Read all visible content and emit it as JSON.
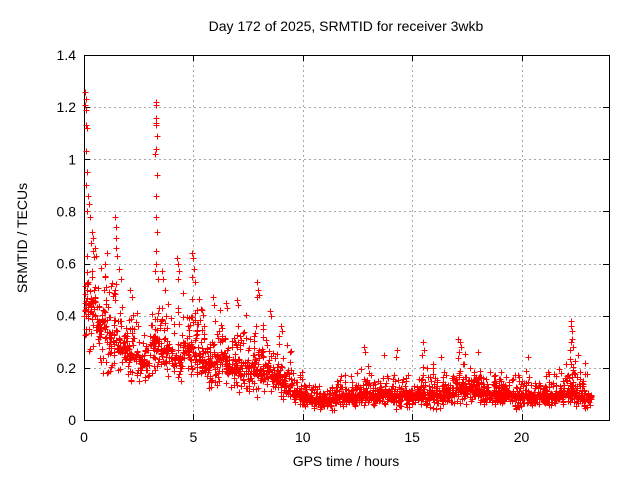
{
  "chart_data": {
    "type": "scatter",
    "title": "Day 172 of 2025, SRMTID for receiver 3wkb",
    "xlabel": "GPS time / hours",
    "ylabel": "SRMTID / TECUs",
    "xlim": [
      0,
      24
    ],
    "ylim": [
      0,
      1.4
    ],
    "xticks": [
      {
        "v": 0,
        "label": "0"
      },
      {
        "v": 5,
        "label": "5"
      },
      {
        "v": 10,
        "label": "10"
      },
      {
        "v": 15,
        "label": "15"
      },
      {
        "v": 20,
        "label": "20"
      }
    ],
    "yticks": [
      {
        "v": 0,
        "label": "0"
      },
      {
        "v": 0.2,
        "label": "0.2"
      },
      {
        "v": 0.4,
        "label": "0.4"
      },
      {
        "v": 0.6,
        "label": "0.6"
      },
      {
        "v": 0.8,
        "label": "0.8"
      },
      {
        "v": 1.0,
        "label": "1"
      },
      {
        "v": 1.2,
        "label": "1.2"
      },
      {
        "v": 1.4,
        "label": "1.4"
      }
    ],
    "grid": true,
    "legend": "none",
    "marker": "plus",
    "marker_size": 7,
    "colors": {
      "marker": "#ff0000",
      "grid": "#a8a8a8",
      "axis": "#000000",
      "background": "#ffffff"
    },
    "x_data_start": 0.0,
    "x_data_end": 23.2,
    "seed": 172172,
    "skew_exponent": 1.5,
    "scatter_bins": [
      [
        0.0,
        0.5,
        60,
        0.18,
        0.75,
        0.45
      ],
      [
        0.5,
        1.0,
        55,
        0.15,
        0.62,
        0.38
      ],
      [
        1.0,
        1.5,
        55,
        0.13,
        0.58,
        0.3
      ],
      [
        1.5,
        2.0,
        55,
        0.14,
        0.55,
        0.28
      ],
      [
        2.0,
        2.5,
        50,
        0.13,
        0.48,
        0.25
      ],
      [
        2.5,
        3.0,
        42,
        0.13,
        0.38,
        0.22
      ],
      [
        3.0,
        3.5,
        55,
        0.17,
        0.52,
        0.3
      ],
      [
        3.5,
        4.0,
        55,
        0.14,
        0.5,
        0.27
      ],
      [
        4.0,
        4.5,
        42,
        0.11,
        0.45,
        0.22
      ],
      [
        4.5,
        5.0,
        55,
        0.14,
        0.52,
        0.28
      ],
      [
        5.0,
        5.5,
        55,
        0.12,
        0.5,
        0.25
      ],
      [
        5.5,
        6.0,
        55,
        0.1,
        0.42,
        0.22
      ],
      [
        6.0,
        6.5,
        55,
        0.1,
        0.45,
        0.24
      ],
      [
        6.5,
        7.0,
        55,
        0.1,
        0.42,
        0.2
      ],
      [
        7.0,
        7.5,
        55,
        0.09,
        0.45,
        0.21
      ],
      [
        7.5,
        8.0,
        55,
        0.08,
        0.46,
        0.19
      ],
      [
        8.0,
        8.5,
        55,
        0.08,
        0.44,
        0.19
      ],
      [
        8.5,
        9.0,
        55,
        0.08,
        0.4,
        0.17
      ],
      [
        9.0,
        9.5,
        55,
        0.06,
        0.32,
        0.14
      ],
      [
        9.5,
        10.0,
        60,
        0.05,
        0.2,
        0.1
      ],
      [
        10.0,
        10.5,
        60,
        0.04,
        0.17,
        0.09
      ],
      [
        10.5,
        11.0,
        60,
        0.03,
        0.16,
        0.08
      ],
      [
        11.0,
        11.5,
        60,
        0.03,
        0.16,
        0.08
      ],
      [
        11.5,
        12.0,
        60,
        0.04,
        0.18,
        0.09
      ],
      [
        12.0,
        12.5,
        60,
        0.04,
        0.2,
        0.09
      ],
      [
        12.5,
        13.0,
        60,
        0.05,
        0.24,
        0.1
      ],
      [
        13.0,
        13.5,
        60,
        0.04,
        0.2,
        0.09
      ],
      [
        13.5,
        14.0,
        60,
        0.05,
        0.22,
        0.1
      ],
      [
        14.0,
        14.5,
        60,
        0.03,
        0.24,
        0.09
      ],
      [
        14.5,
        15.0,
        60,
        0.04,
        0.18,
        0.09
      ],
      [
        15.0,
        15.5,
        60,
        0.05,
        0.22,
        0.1
      ],
      [
        15.5,
        16.0,
        60,
        0.04,
        0.26,
        0.1
      ],
      [
        16.0,
        16.5,
        60,
        0.04,
        0.2,
        0.09
      ],
      [
        16.5,
        17.0,
        60,
        0.05,
        0.22,
        0.1
      ],
      [
        17.0,
        17.5,
        60,
        0.05,
        0.28,
        0.12
      ],
      [
        17.5,
        18.0,
        60,
        0.06,
        0.25,
        0.12
      ],
      [
        18.0,
        18.5,
        60,
        0.05,
        0.23,
        0.11
      ],
      [
        18.5,
        19.0,
        60,
        0.05,
        0.2,
        0.1
      ],
      [
        19.0,
        19.5,
        60,
        0.05,
        0.21,
        0.1
      ],
      [
        19.5,
        20.0,
        60,
        0.04,
        0.2,
        0.09
      ],
      [
        20.0,
        20.5,
        60,
        0.04,
        0.2,
        0.09
      ],
      [
        20.5,
        21.0,
        60,
        0.05,
        0.18,
        0.09
      ],
      [
        21.0,
        21.5,
        60,
        0.04,
        0.2,
        0.09
      ],
      [
        21.5,
        22.0,
        60,
        0.05,
        0.22,
        0.1
      ],
      [
        22.0,
        22.5,
        60,
        0.05,
        0.28,
        0.11
      ],
      [
        22.5,
        23.0,
        55,
        0.04,
        0.22,
        0.09
      ],
      [
        23.0,
        23.2,
        20,
        0.05,
        0.14,
        0.08
      ]
    ],
    "outlier_points": [
      [
        0.05,
        1.26
      ],
      [
        0.08,
        1.23
      ],
      [
        0.06,
        1.21
      ],
      [
        0.1,
        1.19
      ],
      [
        0.09,
        1.13
      ],
      [
        0.12,
        1.12
      ],
      [
        0.07,
        1.03
      ],
      [
        0.15,
        0.95
      ],
      [
        0.11,
        0.9
      ],
      [
        0.18,
        0.86
      ],
      [
        0.22,
        0.83
      ],
      [
        0.13,
        0.8
      ],
      [
        0.28,
        0.78
      ],
      [
        0.35,
        0.72
      ],
      [
        0.3,
        0.68
      ],
      [
        0.42,
        0.7
      ],
      [
        0.5,
        0.66
      ],
      [
        0.55,
        0.63
      ],
      [
        0.95,
        0.6
      ],
      [
        1.05,
        0.64
      ],
      [
        1.42,
        0.78
      ],
      [
        1.45,
        0.74
      ],
      [
        1.48,
        0.7
      ],
      [
        1.44,
        0.66
      ],
      [
        1.52,
        0.63
      ],
      [
        1.6,
        0.58
      ],
      [
        1.7,
        0.54
      ],
      [
        2.1,
        0.5
      ],
      [
        2.2,
        0.47
      ],
      [
        3.27,
        1.22
      ],
      [
        3.3,
        1.21
      ],
      [
        3.29,
        1.16
      ],
      [
        3.31,
        1.14
      ],
      [
        3.28,
        1.13
      ],
      [
        3.32,
        1.09
      ],
      [
        3.3,
        1.04
      ],
      [
        3.26,
        1.02
      ],
      [
        3.33,
        0.94
      ],
      [
        3.29,
        0.86
      ],
      [
        3.31,
        0.78
      ],
      [
        3.34,
        0.72
      ],
      [
        3.28,
        0.65
      ],
      [
        3.3,
        0.6
      ],
      [
        3.25,
        0.57
      ],
      [
        3.36,
        0.54
      ],
      [
        3.55,
        0.57
      ],
      [
        3.6,
        0.54
      ],
      [
        3.7,
        0.5
      ],
      [
        4.25,
        0.62
      ],
      [
        4.3,
        0.6
      ],
      [
        4.35,
        0.57
      ],
      [
        4.28,
        0.54
      ],
      [
        4.92,
        0.64
      ],
      [
        4.97,
        0.62
      ],
      [
        5.02,
        0.58
      ],
      [
        4.95,
        0.55
      ],
      [
        5.08,
        0.53
      ],
      [
        5.9,
        0.47
      ],
      [
        5.95,
        0.44
      ],
      [
        6.5,
        0.45
      ],
      [
        6.55,
        0.43
      ],
      [
        7.0,
        0.46
      ],
      [
        7.05,
        0.44
      ],
      [
        7.9,
        0.47
      ],
      [
        7.92,
        0.53
      ],
      [
        7.95,
        0.5
      ],
      [
        7.98,
        0.48
      ],
      [
        8.5,
        0.42
      ],
      [
        8.55,
        0.4
      ],
      [
        9.0,
        0.36
      ],
      [
        9.05,
        0.34
      ],
      [
        12.78,
        0.28
      ],
      [
        12.84,
        0.26
      ],
      [
        13.7,
        0.25
      ],
      [
        14.25,
        0.24
      ],
      [
        14.3,
        0.27
      ],
      [
        15.45,
        0.25
      ],
      [
        15.5,
        0.3
      ],
      [
        15.55,
        0.27
      ],
      [
        16.3,
        0.24
      ],
      [
        17.1,
        0.31
      ],
      [
        17.18,
        0.3
      ],
      [
        17.25,
        0.28
      ],
      [
        17.15,
        0.26
      ],
      [
        18.0,
        0.26
      ],
      [
        20.3,
        0.24
      ],
      [
        22.2,
        0.27
      ],
      [
        22.24,
        0.38
      ],
      [
        22.26,
        0.3
      ],
      [
        22.28,
        0.36
      ],
      [
        22.3,
        0.34
      ],
      [
        22.33,
        0.31
      ],
      [
        22.36,
        0.28
      ],
      [
        22.6,
        0.25
      ],
      [
        22.9,
        0.22
      ]
    ]
  }
}
